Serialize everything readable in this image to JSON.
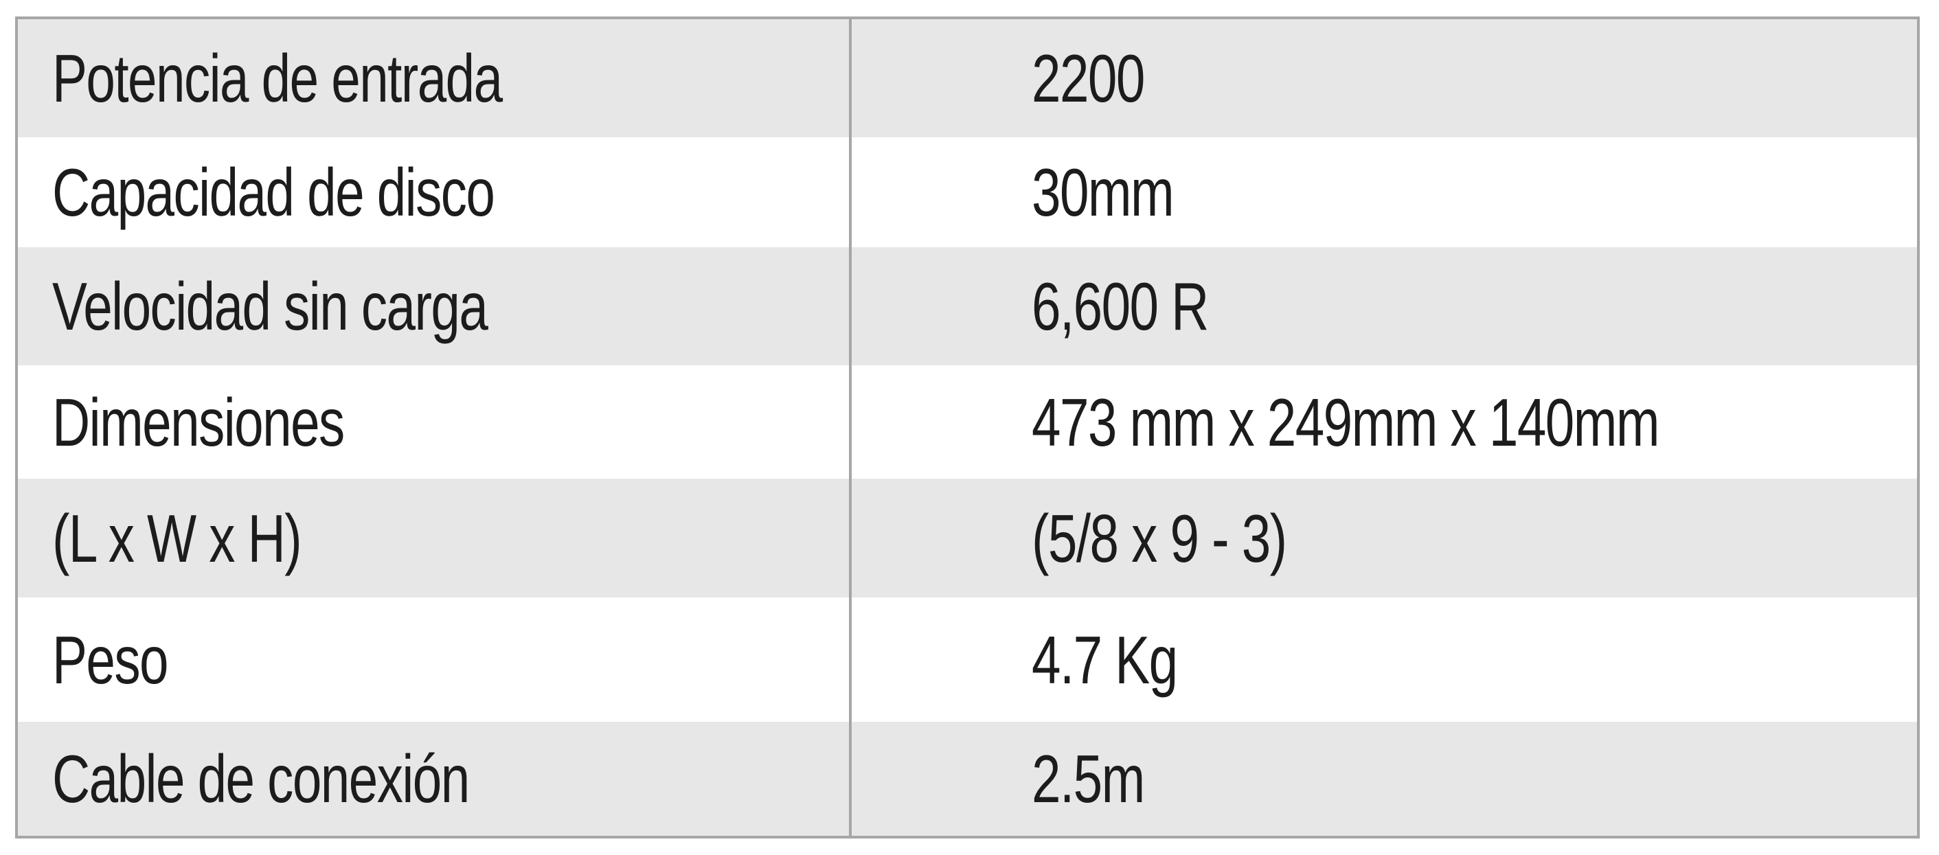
{
  "specs": {
    "rows": [
      {
        "label": "Potencia de entrada",
        "value": "2200"
      },
      {
        "label": "Capacidad de disco",
        "value": "30mm"
      },
      {
        "label": "Velocidad sin carga",
        "value": "6,600 R"
      },
      {
        "label": "Dimensiones",
        "value": "473 mm x 249mm x 140mm"
      },
      {
        "label": "(L x W x H)",
        "value": "(5/8 x 9 - 3)"
      },
      {
        "label": "Peso",
        "value": "4.7 Kg"
      },
      {
        "label": "Cable de conexión",
        "value": "2.5m"
      }
    ]
  },
  "colors": {
    "shaded_row": "#e7e7e7",
    "plain_row": "#ffffff",
    "border": "#a6a6a6",
    "text": "#1c1c1c"
  }
}
